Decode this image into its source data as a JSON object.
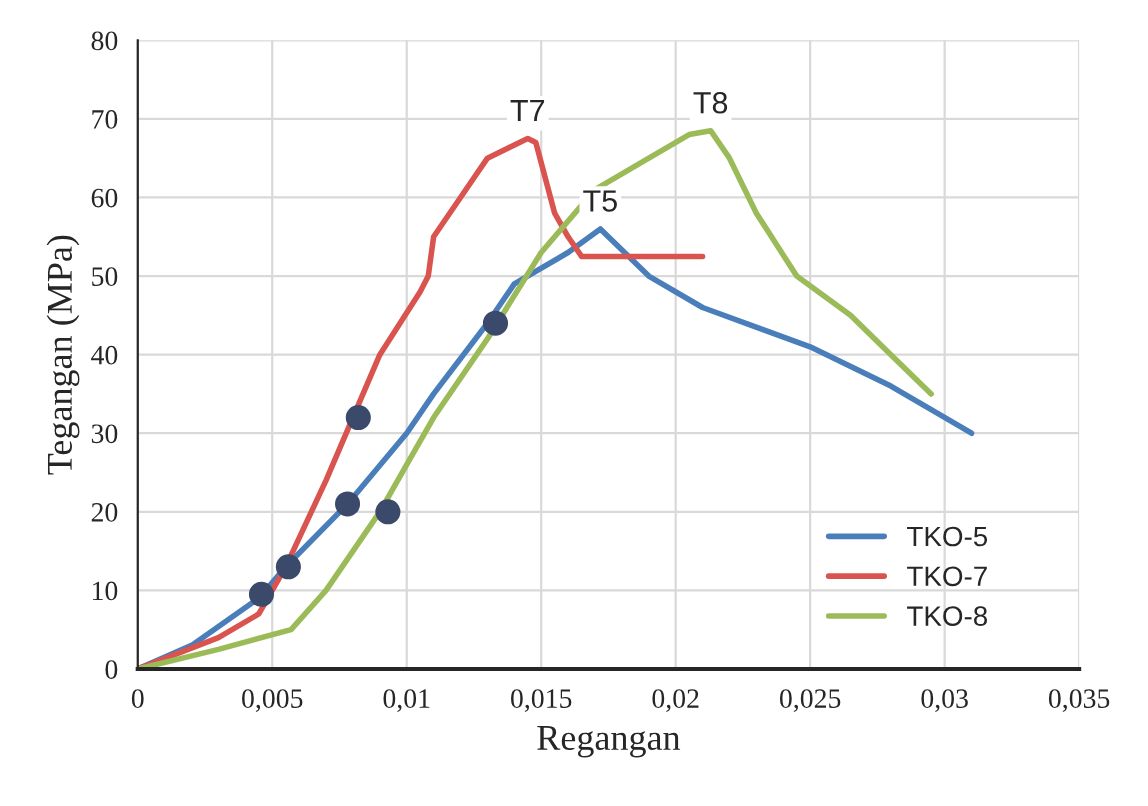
{
  "chart_data": {
    "type": "line",
    "xlabel": "Regangan",
    "ylabel": "Tegangan (MPa)",
    "xlim": [
      0,
      0.035
    ],
    "ylim": [
      0,
      80
    ],
    "xticks": [
      {
        "value": 0,
        "label": "0"
      },
      {
        "value": 0.005,
        "label": "0,005"
      },
      {
        "value": 0.01,
        "label": "0,01"
      },
      {
        "value": 0.015,
        "label": "0,015"
      },
      {
        "value": 0.02,
        "label": "0,02"
      },
      {
        "value": 0.025,
        "label": "0,025"
      },
      {
        "value": 0.03,
        "label": "0,03"
      },
      {
        "value": 0.035,
        "label": "0,035"
      }
    ],
    "yticks": [
      0,
      10,
      20,
      30,
      40,
      50,
      60,
      70,
      80
    ],
    "grid": true,
    "legend": "bottom right",
    "series": [
      {
        "name": "TKO-5",
        "color": "#4a7ebb",
        "x": [
          0,
          0.002,
          0.0045,
          0.0055,
          0.0078,
          0.01,
          0.011,
          0.013,
          0.014,
          0.016,
          0.0172,
          0.019,
          0.021,
          0.025,
          0.028,
          0.031
        ],
        "values": [
          0,
          3,
          9,
          13,
          21,
          30,
          35,
          44,
          49,
          53,
          56,
          50,
          46,
          41,
          36,
          30
        ]
      },
      {
        "name": "TKO-7",
        "color": "#d9534f",
        "x": [
          0,
          0.003,
          0.0045,
          0.0055,
          0.007,
          0.009,
          0.0105,
          0.0108,
          0.011,
          0.012,
          0.013,
          0.0145,
          0.0148,
          0.0155,
          0.016,
          0.0165,
          0.021
        ],
        "values": [
          0,
          4,
          7,
          13,
          24,
          40,
          48,
          50,
          55,
          60,
          65,
          67.5,
          67,
          58,
          55,
          52.5,
          52.5
        ]
      },
      {
        "name": "TKO-8",
        "color": "#9bbb59",
        "x": [
          0,
          0.003,
          0.0057,
          0.007,
          0.008,
          0.009,
          0.01,
          0.011,
          0.013,
          0.015,
          0.017,
          0.019,
          0.0205,
          0.0213,
          0.022,
          0.023,
          0.0245,
          0.0265,
          0.028,
          0.0295
        ],
        "values": [
          0,
          2.5,
          5,
          10,
          15,
          20,
          26,
          32,
          42,
          53,
          61,
          65,
          68,
          68.5,
          65,
          58,
          50,
          45,
          40,
          35
        ]
      },
      {
        "type": "scatter",
        "color": "#3b4a6b",
        "marker": "circle",
        "x": [
          0.0046,
          0.0056,
          0.0078,
          0.0082,
          0.0093,
          0.0133
        ],
        "values": [
          9.5,
          13,
          21,
          32,
          20,
          44
        ]
      }
    ],
    "annotations": [
      {
        "text": "T7",
        "x": 0.0145,
        "y": 67.5
      },
      {
        "text": "T5",
        "x": 0.0172,
        "y": 56
      },
      {
        "text": "T8",
        "x": 0.0213,
        "y": 68.5
      }
    ]
  }
}
